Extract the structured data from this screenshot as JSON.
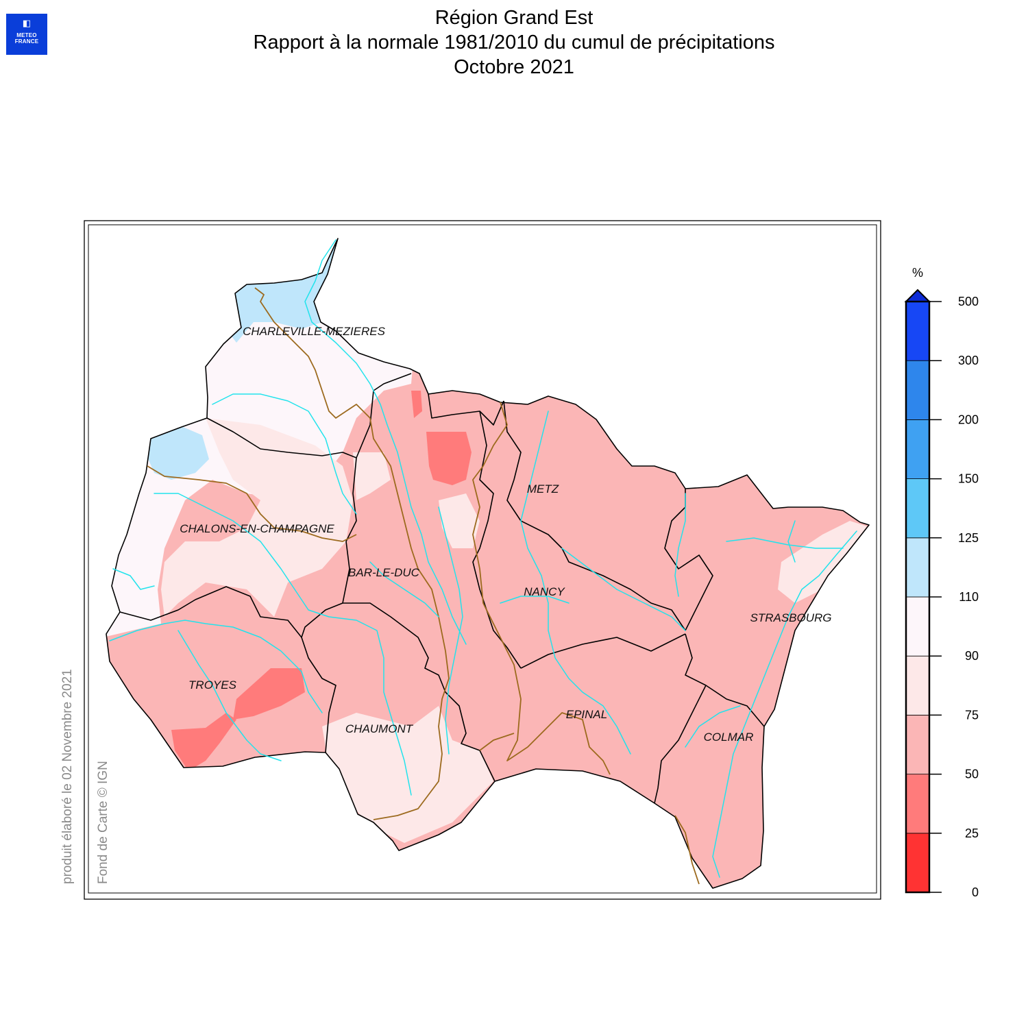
{
  "logo": {
    "line1": "METEO",
    "line2": "FRANCE"
  },
  "title": {
    "line1": "Région Grand Est",
    "line2": "Rapport à la normale 1981/2010 du cumul de précipitations",
    "line3": "Octobre 2021"
  },
  "credits": {
    "produced": "produit élaboré le 02 Novembre 2021",
    "basemap": "Fond de Carte © IGN"
  },
  "cities": [
    {
      "name": "CHARLEVILLE-MEZIERES"
    },
    {
      "name": "CHALONS-EN-CHAMPAGNE"
    },
    {
      "name": "BAR-LE-DUC"
    },
    {
      "name": "METZ"
    },
    {
      "name": "NANCY"
    },
    {
      "name": "STRASBOURG"
    },
    {
      "name": "TROYES"
    },
    {
      "name": "EPINAL"
    },
    {
      "name": "CHAUMONT"
    },
    {
      "name": "COLMAR"
    }
  ],
  "legend": {
    "unit": "%",
    "ticks": [
      "0",
      "25",
      "50",
      "75",
      "90",
      "110",
      "125",
      "150",
      "200",
      "300",
      "500"
    ],
    "classes": [
      {
        "from": "0",
        "to": "25",
        "color": "#ff3333"
      },
      {
        "from": "25",
        "to": "50",
        "color": "#ff7b7b"
      },
      {
        "from": "50",
        "to": "75",
        "color": "#fbb6b6"
      },
      {
        "from": "75",
        "to": "90",
        "color": "#fde8e8"
      },
      {
        "from": "90",
        "to": "110",
        "color": "#fdf6fa"
      },
      {
        "from": "110",
        "to": "125",
        "color": "#bfe6fb"
      },
      {
        "from": "125",
        "to": "150",
        "color": "#5ec8f7"
      },
      {
        "from": "150",
        "to": "200",
        "color": "#3fa1f2"
      },
      {
        "from": "200",
        "to": "300",
        "color": "#2e86ec"
      },
      {
        "from": "300",
        "to": "500",
        "color": "#1747f5"
      }
    ],
    "overflow_color": "#0d2bd6"
  },
  "colors": {
    "rivers": "#21e3ec",
    "borders": "#000000",
    "basin_lines": "#9c6a1e"
  }
}
